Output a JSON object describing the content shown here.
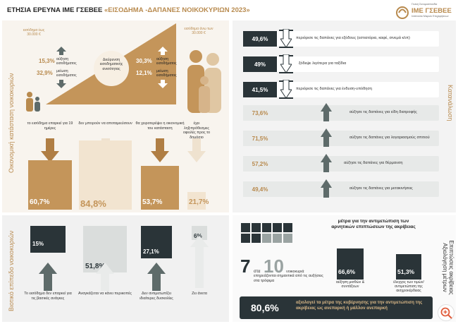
{
  "header": {
    "title": "ΕΤΗΣΙΑ ΕΡΕΥΝΑ ΙΜΕ ΓΣΕΒΕΕ",
    "subtitle": "«ΕΙΣΟΔΗΜΑ -ΔΑΠΑΝΕΣ ΝΟΙΚΟΚΥΡΙΩΝ 2023»",
    "logo_small": "Γενική Συνομοσπονδία",
    "logo_text": "ΙΜΕ ΓΣΕΒΕΕ",
    "logo_sub": "Ινστιτούτο Μικρών Επιχειρήσεων"
  },
  "side": {
    "economic": "Οικονομική κατάσταση νοικοκυριών",
    "living": "Βιοτικό επίπεδο νοικοκυριών",
    "consumption": "Κατανάλωση",
    "measures": "Επιπτώσεις ακρίβειας Αξιολόγηση μέτρων"
  },
  "top": {
    "left_income_label": "εισόδημα έως 30.000 €",
    "right_income_label": "εισόδημα άνω των 30.000 €",
    "left_up_pct": "15,3%",
    "left_up_label": "αύξηση εισοδήματος",
    "left_down_pct": "32,9%",
    "left_down_label": "μείωση εισοδήματος",
    "center_label": "Διεύρυνση εισοδηματικής ανισότητας",
    "right_up_pct": "30,3%",
    "right_up_label": "αύξηση εισοδήματος",
    "right_down_pct": "12,1%",
    "right_down_label": "μείωση εισοδήματος"
  },
  "econ_bars": [
    {
      "label": "το εισόδημα επαρκεί για 19 ημέρες",
      "value": "60,7%",
      "fraction": 0.607
    },
    {
      "label": "δεν μπορούν να αποταμιεύσουν",
      "value": "84,8%",
      "fraction": 0.848
    },
    {
      "label": "θα χειροτερέψει η οικονομική του κατάσταση",
      "value": "53,7%",
      "fraction": 0.537
    },
    {
      "label": "έχει ληξιπρόθεσμες οφειλές προς το δημόσιο",
      "value": "21,7%",
      "fraction": 0.217
    }
  ],
  "consumption": [
    {
      "value": "49,6%",
      "label": "περιόρισε τις δαπάνες για εξόδους (εστιατόρια, καφέ, σινεμά κλπ)",
      "dir": "down"
    },
    {
      "value": "49%",
      "label": "ξόδεψε λιγότερα για ταξίδια",
      "dir": "down"
    },
    {
      "value": "41,5%",
      "label": "περιόρισε τις δαπάνες για ένδυση-υπόδηση",
      "dir": "down"
    },
    {
      "value": "73,6%",
      "label": "αύξησε τις δαπάνες για είδη διατροφής",
      "dir": "up"
    },
    {
      "value": "71,5%",
      "label": "αύξησε τις δαπάνες για λογαριασμούς σπιτιού",
      "dir": "up"
    },
    {
      "value": "57,2%",
      "label": "αύξησε τις δαπάνες για θέρμανση",
      "dir": "up"
    },
    {
      "value": "49,4%",
      "label": "αύξησε τις δαπάνες για μετακινήσεις",
      "dir": "up"
    }
  ],
  "living": [
    {
      "value": "15%",
      "label": "Το εισόδημα δεν επαρκεί για τις βασικές ανάγκες",
      "fraction": 0.15
    },
    {
      "value": "51,8%",
      "label": "Αναγκάζεται να κάνει περικοπές",
      "fraction": 0.518
    },
    {
      "value": "27,1%",
      "label": "Δεν αντιμετωπίζει ιδιαίτερες δυσκολίες",
      "fraction": 0.271
    },
    {
      "value": "6%",
      "label": "Ζει άνετα",
      "fraction": 0.06
    }
  ],
  "measures": {
    "big_left": "7",
    "of_label": "στα",
    "big_right": "10",
    "households_text": "νοικοκυριά επηρεάζονται σημαντικά από τις αυξήσεις στα τρόφιμα",
    "title": "μέτρα για την αντιμετώπιση των αρνητικών επιπτώσεων της ακρίβειας",
    "m1_value": "66,6%",
    "m1_label": "αύξηση μισθών & συντάξεων",
    "m2_value": "51,3%",
    "m2_label": "έλεγχος των τιμών/ αντιμετώπιση της αισχροκέρδειας",
    "bottom_value": "80,6%",
    "bottom_text": "αξιολογεί τα μέτρα της κυβέρνησης για την αντιμετώπιση της ακρίβειας ως ανεπαρκή ή μάλλον ανεπαρκή"
  },
  "colors": {
    "gold": "#b88a4e",
    "dark": "#2a3438",
    "grey": "#5e6b6a"
  }
}
